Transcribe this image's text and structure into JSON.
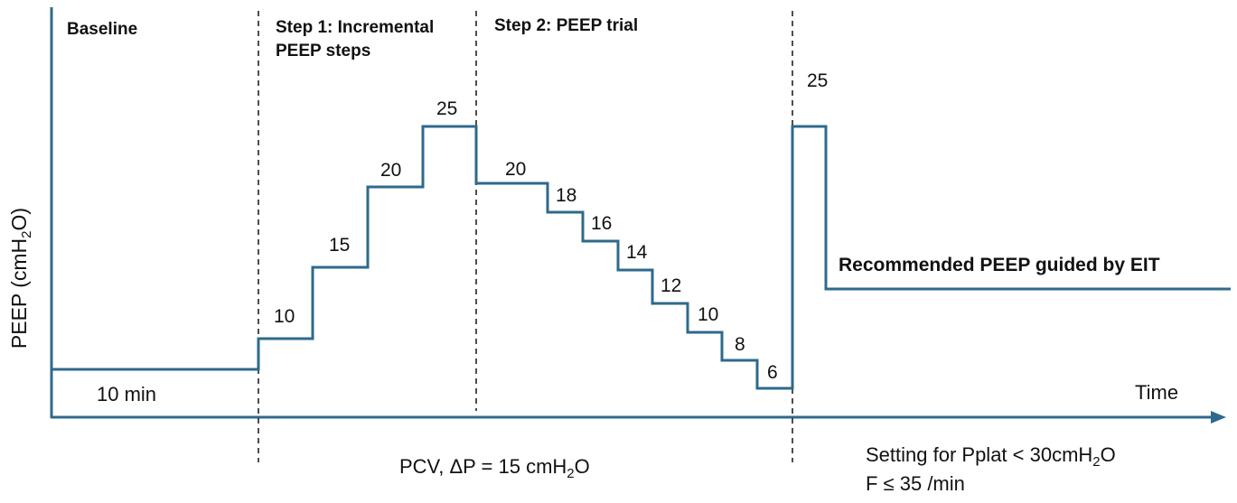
{
  "phases": {
    "baseline": "Baseline",
    "step1_line1": "Step 1: Incremental",
    "step1_line2": "PEEP steps",
    "step2": "Step 2: PEEP trial"
  },
  "axes": {
    "ylabel_prefix": "PEEP (cmH",
    "ylabel_sub": "2",
    "ylabel_suffix": "O)",
    "xlabel": "Time"
  },
  "baseline_duration": "10 min",
  "incremental_steps": [
    "10",
    "15",
    "20",
    "25"
  ],
  "trial_steps": [
    "20",
    "18",
    "16",
    "14",
    "12",
    "10",
    "8",
    "6"
  ],
  "recruitment_value": "25",
  "recommended_label": "Recommended PEEP guided by EIT",
  "mode": {
    "prefix": "PCV, ΔP = 15 cmH",
    "sub": "2",
    "suffix": "O"
  },
  "settings": {
    "line1_prefix": "Setting for Pplat < 30cmH",
    "line1_sub": "2",
    "line1_suffix": "O",
    "line2": "F ≤ 35 /min"
  },
  "colors": {
    "trace": "#2e6a8c",
    "divider": "#222222",
    "text": "#111111"
  }
}
